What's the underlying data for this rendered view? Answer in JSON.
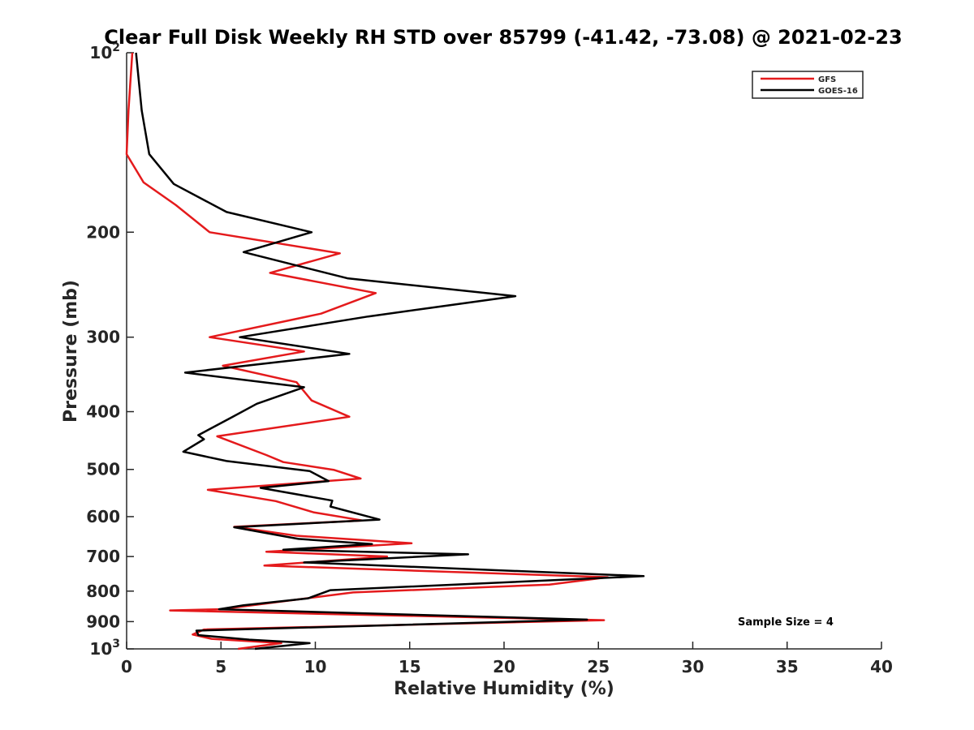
{
  "chart_data": {
    "type": "line",
    "title": "Clear Full Disk Weekly RH STD over 85799 (-41.42, -73.08) @ 2021-02-23",
    "xlabel": "Relative Humidity (%)",
    "ylabel": "Pressure (mb)",
    "xlim": [
      0,
      40
    ],
    "ylim": [
      100,
      1000
    ],
    "yscale": "log",
    "y_reversed": true,
    "grid": false,
    "legend_position": "top-right",
    "annotation": "Sample Size = 4",
    "xticks": [
      0,
      5,
      10,
      15,
      20,
      25,
      30,
      35,
      40
    ],
    "xtick_labels": [
      "0",
      "5",
      "10",
      "15",
      "20",
      "25",
      "30",
      "35",
      "40"
    ],
    "yticks": [
      100,
      200,
      300,
      400,
      500,
      600,
      700,
      800,
      900,
      1000
    ],
    "ytick_labels": [
      "10^2",
      "200",
      "300",
      "400",
      "500",
      "600",
      "700",
      "800",
      "900",
      "10^3"
    ],
    "series": [
      {
        "name": "GFS",
        "color": "#e41a1c",
        "points": [
          [
            0.3,
            100
          ],
          [
            0.1,
            125
          ],
          [
            0.0,
            148
          ],
          [
            0.9,
            165
          ],
          [
            2.6,
            180
          ],
          [
            4.4,
            200
          ],
          [
            11.3,
            217
          ],
          [
            7.6,
            234
          ],
          [
            13.2,
            253
          ],
          [
            10.3,
            274
          ],
          [
            4.4,
            300
          ],
          [
            9.4,
            317
          ],
          [
            5.1,
            335
          ],
          [
            9.0,
            357
          ],
          [
            9.8,
            383
          ],
          [
            11.8,
            408
          ],
          [
            4.8,
            440
          ],
          [
            7.4,
            473
          ],
          [
            8.3,
            486
          ],
          [
            11.0,
            501
          ],
          [
            12.4,
            518
          ],
          [
            4.3,
            541
          ],
          [
            7.9,
            565
          ],
          [
            9.9,
            590
          ],
          [
            12.5,
            609
          ],
          [
            5.7,
            624
          ],
          [
            9.0,
            646
          ],
          [
            15.1,
            665
          ],
          [
            7.4,
            687
          ],
          [
            13.8,
            700
          ],
          [
            7.3,
            725
          ],
          [
            25.5,
            758
          ],
          [
            22.4,
            780
          ],
          [
            12.0,
            804
          ],
          [
            5.0,
            858
          ],
          [
            2.3,
            862
          ],
          [
            25.3,
            895
          ],
          [
            4.1,
            928
          ],
          [
            3.5,
            946
          ],
          [
            4.5,
            962
          ],
          [
            8.2,
            978
          ],
          [
            5.9,
            1000
          ]
        ]
      },
      {
        "name": "GOES-16",
        "color": "#000000",
        "points": [
          [
            0.5,
            100
          ],
          [
            0.8,
            125
          ],
          [
            1.2,
            148
          ],
          [
            2.5,
            166
          ],
          [
            5.3,
            185
          ],
          [
            9.8,
            200
          ],
          [
            6.2,
            216
          ],
          [
            11.7,
            239
          ],
          [
            20.6,
            256
          ],
          [
            12.8,
            277
          ],
          [
            6.0,
            300
          ],
          [
            11.8,
            320
          ],
          [
            3.1,
            344
          ],
          [
            9.4,
            364
          ],
          [
            6.9,
            388
          ],
          [
            5.5,
            410
          ],
          [
            3.8,
            438
          ],
          [
            4.1,
            445
          ],
          [
            3.0,
            467
          ],
          [
            5.3,
            484
          ],
          [
            9.7,
            503
          ],
          [
            10.7,
            523
          ],
          [
            7.1,
            537
          ],
          [
            10.9,
            564
          ],
          [
            10.8,
            577
          ],
          [
            13.4,
            607
          ],
          [
            5.7,
            625
          ],
          [
            9.1,
            654
          ],
          [
            13.0,
            667
          ],
          [
            8.3,
            682
          ],
          [
            18.1,
            694
          ],
          [
            9.4,
            716
          ],
          [
            27.4,
            755
          ],
          [
            10.8,
            797
          ],
          [
            9.6,
            823
          ],
          [
            6.2,
            845
          ],
          [
            4.9,
            858
          ],
          [
            24.4,
            893
          ],
          [
            3.7,
            932
          ],
          [
            3.8,
            948
          ],
          [
            6.5,
            965
          ],
          [
            9.7,
            978
          ],
          [
            6.8,
            1000
          ]
        ]
      }
    ]
  }
}
